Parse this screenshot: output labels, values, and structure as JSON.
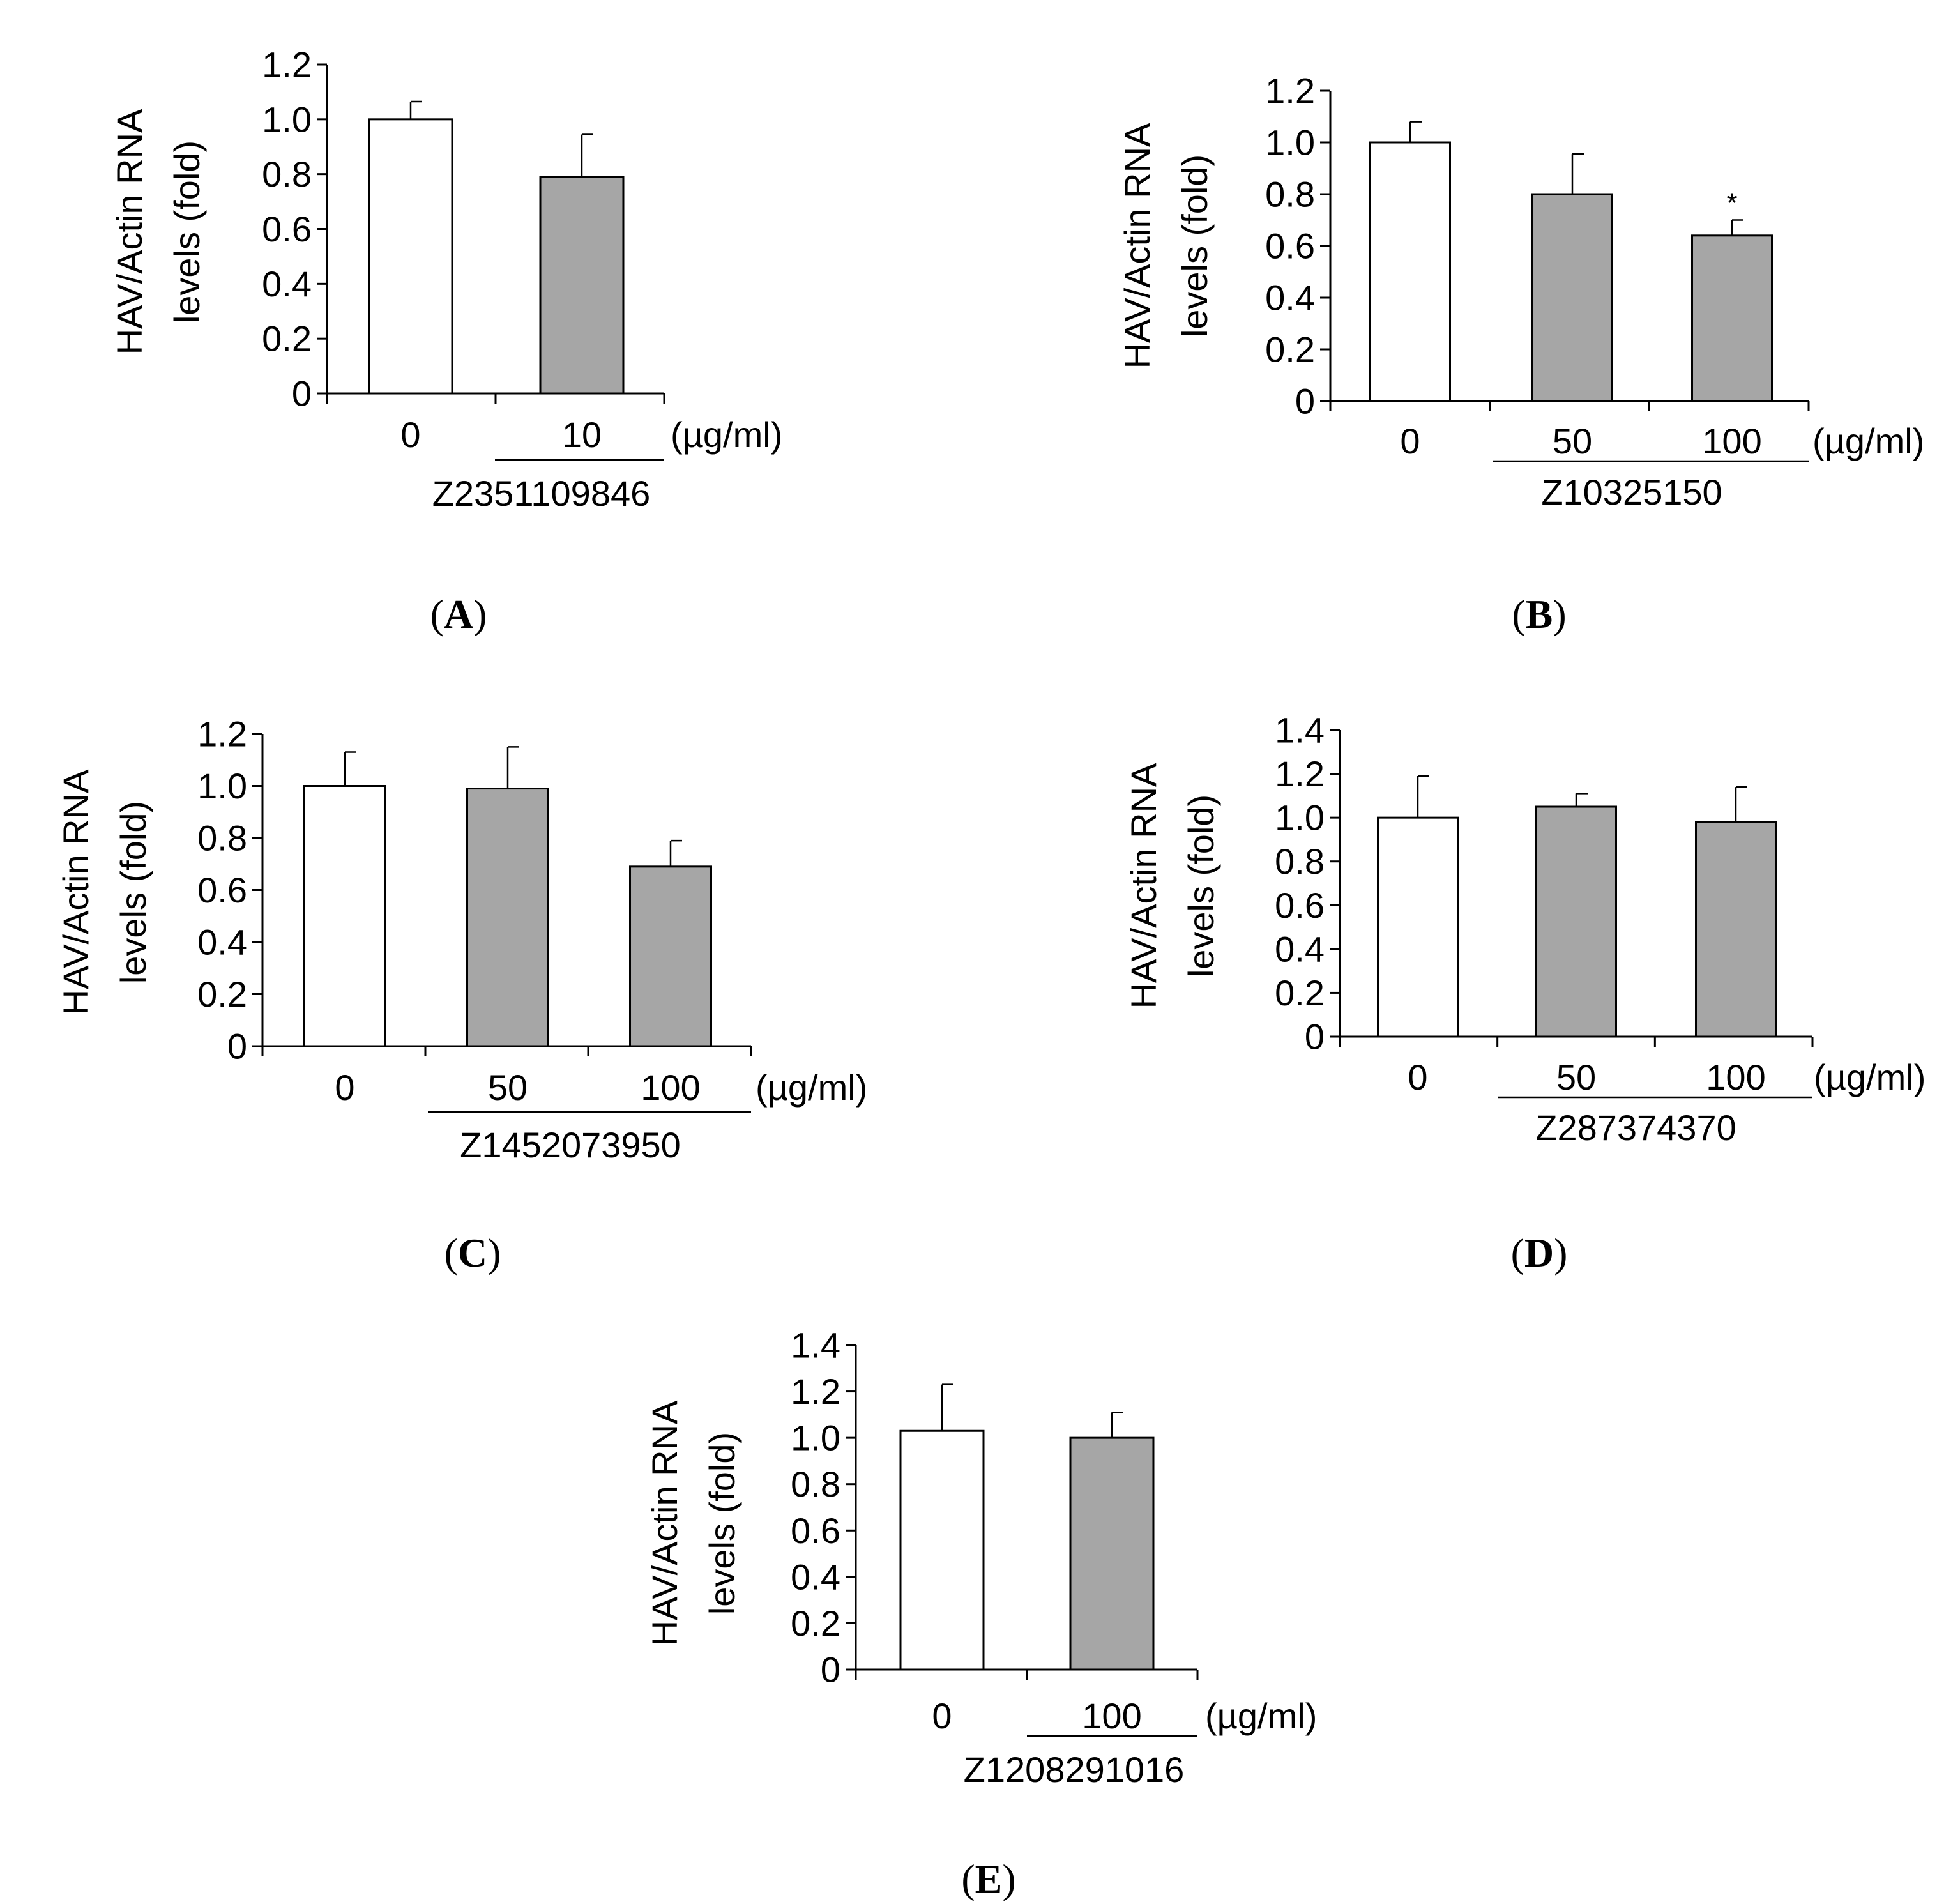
{
  "chart_data": [
    {
      "panel": "A",
      "type": "bar",
      "ylabel_line1": "HAV/Actin RNA",
      "ylabel_line2": "levels (fold)",
      "ylim": [
        0,
        1.2
      ],
      "yticks": [
        "0",
        "0.2",
        "0.4",
        "0.6",
        "0.8",
        "1.0",
        "1.2"
      ],
      "categories": [
        "0",
        "10"
      ],
      "values": [
        1.0,
        0.79
      ],
      "errors": [
        0.065,
        0.155
      ],
      "fills": [
        "#ffffff",
        "#a6a6a6"
      ],
      "annotations": [
        "",
        ""
      ],
      "unit": "(µg/ml)",
      "compound": "Z2351109846"
    },
    {
      "panel": "B",
      "type": "bar",
      "ylabel_line1": "HAV/Actin RNA",
      "ylabel_line2": "levels (fold)",
      "ylim": [
        0,
        1.2
      ],
      "yticks": [
        "0",
        "0.2",
        "0.4",
        "0.6",
        "0.8",
        "1.0",
        "1.2"
      ],
      "categories": [
        "0",
        "50",
        "100"
      ],
      "values": [
        1.0,
        0.8,
        0.64
      ],
      "errors": [
        0.08,
        0.155,
        0.06
      ],
      "fills": [
        "#ffffff",
        "#a6a6a6",
        "#a6a6a6"
      ],
      "annotations": [
        "",
        "",
        "*"
      ],
      "unit": "(µg/ml)",
      "compound": "Z10325150"
    },
    {
      "panel": "C",
      "type": "bar",
      "ylabel_line1": "HAV/Actin RNA",
      "ylabel_line2": "levels (fold)",
      "ylim": [
        0,
        1.2
      ],
      "yticks": [
        "0",
        "0.2",
        "0.4",
        "0.6",
        "0.8",
        "1.0",
        "1.2"
      ],
      "categories": [
        "0",
        "50",
        "100"
      ],
      "values": [
        1.0,
        0.99,
        0.69
      ],
      "errors": [
        0.13,
        0.16,
        0.1
      ],
      "fills": [
        "#ffffff",
        "#a6a6a6",
        "#a6a6a6"
      ],
      "annotations": [
        "",
        "",
        ""
      ],
      "unit": "(µg/ml)",
      "compound": "Z1452073950"
    },
    {
      "panel": "D",
      "type": "bar",
      "ylabel_line1": "HAV/Actin RNA",
      "ylabel_line2": "levels (fold)",
      "ylim": [
        0,
        1.4
      ],
      "yticks": [
        "0",
        "0.2",
        "0.4",
        "0.6",
        "0.8",
        "1.0",
        "1.2",
        "1.4"
      ],
      "categories": [
        "0",
        "50",
        "100"
      ],
      "values": [
        1.0,
        1.05,
        0.98
      ],
      "errors": [
        0.19,
        0.06,
        0.16
      ],
      "fills": [
        "#ffffff",
        "#a6a6a6",
        "#a6a6a6"
      ],
      "annotations": [
        "",
        "",
        ""
      ],
      "unit": "(µg/ml)",
      "compound": "Z287374370"
    },
    {
      "panel": "E",
      "type": "bar",
      "ylabel_line1": "HAV/Actin RNA",
      "ylabel_line2": "levels (fold)",
      "ylim": [
        0,
        1.4
      ],
      "yticks": [
        "0",
        "0.2",
        "0.4",
        "0.6",
        "0.8",
        "1.0",
        "1.2",
        "1.4"
      ],
      "categories": [
        "0",
        "100"
      ],
      "values": [
        1.03,
        1.0
      ],
      "errors": [
        0.2,
        0.11
      ],
      "fills": [
        "#ffffff",
        "#a6a6a6"
      ],
      "annotations": [
        "",
        ""
      ],
      "unit": "(µg/ml)",
      "compound": "Z1208291016"
    }
  ]
}
